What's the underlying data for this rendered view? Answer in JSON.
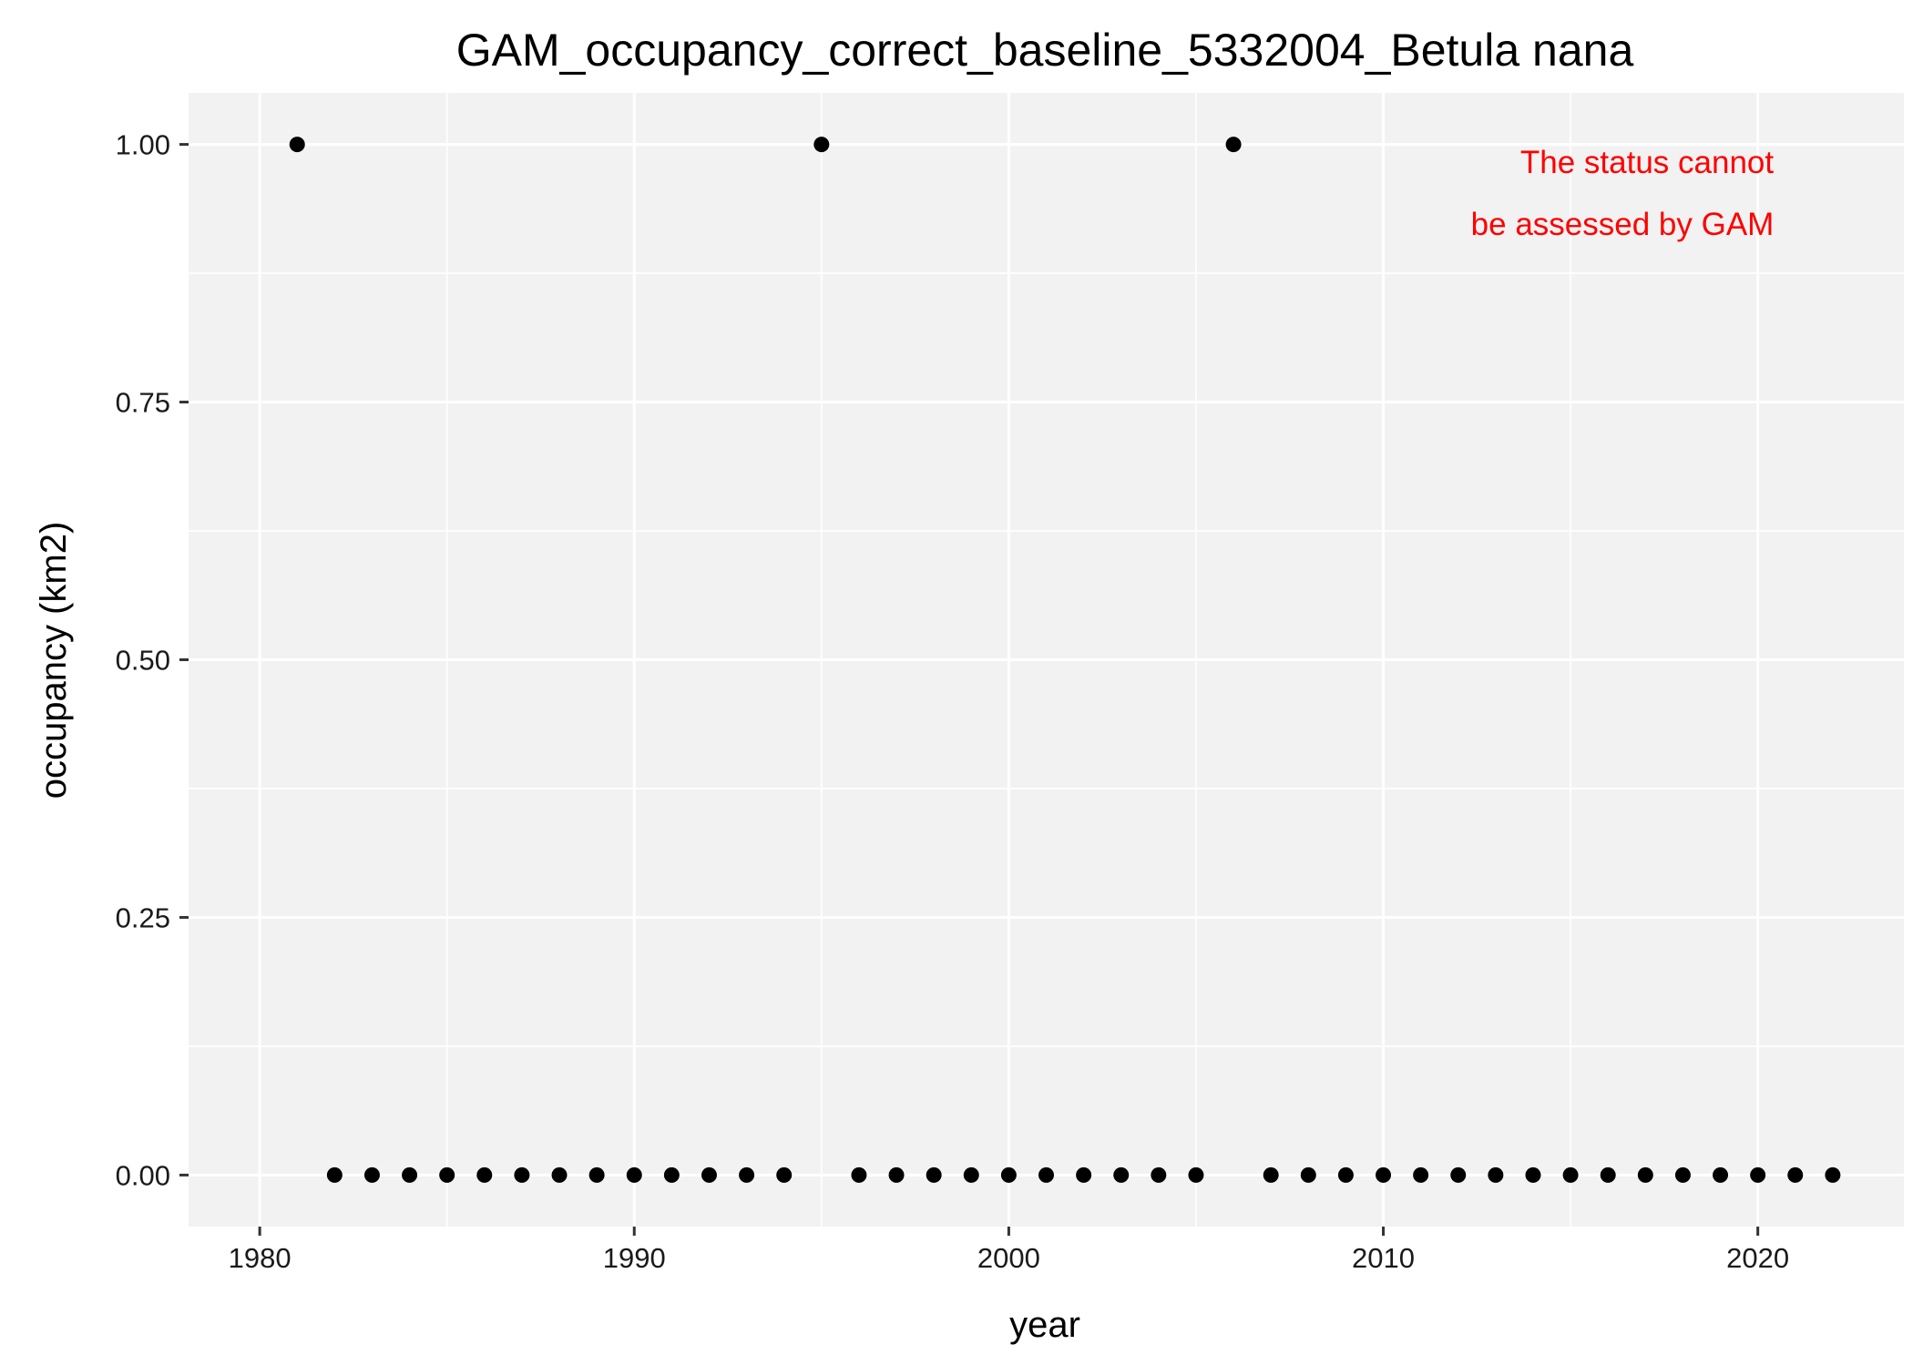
{
  "chart_data": {
    "type": "scatter",
    "title": "GAM_occupancy_correct_baseline_5332004_Betula nana",
    "xlabel": "year",
    "ylabel": "occupancy (km2)",
    "xlim": [
      1978.1,
      2023.9
    ],
    "ylim": [
      -0.05,
      1.05
    ],
    "x_ticks": [
      1980,
      1990,
      2000,
      2010,
      2020
    ],
    "x_tick_labels": [
      "1980",
      "1990",
      "2000",
      "2010",
      "2020"
    ],
    "y_ticks": [
      0,
      0.25,
      0.5,
      0.75,
      1
    ],
    "y_tick_labels": [
      "0.00",
      "0.25",
      "0.50",
      "0.75",
      "1.00"
    ],
    "grid": true,
    "legend": "none",
    "series": [
      {
        "x": [
          1981,
          1982,
          1983,
          1984,
          1985,
          1986,
          1987,
          1988,
          1989,
          1990,
          1991,
          1992,
          1993,
          1994,
          1995,
          1996,
          1997,
          1998,
          1999,
          2000,
          2001,
          2002,
          2003,
          2004,
          2005,
          2006,
          2007,
          2008,
          2009,
          2010,
          2011,
          2012,
          2013,
          2014,
          2015,
          2016,
          2017,
          2018,
          2019,
          2020,
          2021,
          2022
        ],
        "y": [
          1,
          0,
          0,
          0,
          0,
          0,
          0,
          0,
          0,
          0,
          0,
          0,
          0,
          0,
          1,
          0,
          0,
          0,
          0,
          0,
          0,
          0,
          0,
          0,
          0,
          1,
          0,
          0,
          0,
          0,
          0,
          0,
          0,
          0,
          0,
          0,
          0,
          0,
          0,
          0,
          0,
          0
        ]
      }
    ],
    "annotation": {
      "lines": [
        "The status cannot",
        "be assessed by GAM"
      ],
      "color": "#ff0000"
    }
  },
  "colors": {
    "panel_background": "#f2f2f2",
    "grid": "#ffffff",
    "point": "#000000",
    "axis_ticks": "#333333"
  }
}
